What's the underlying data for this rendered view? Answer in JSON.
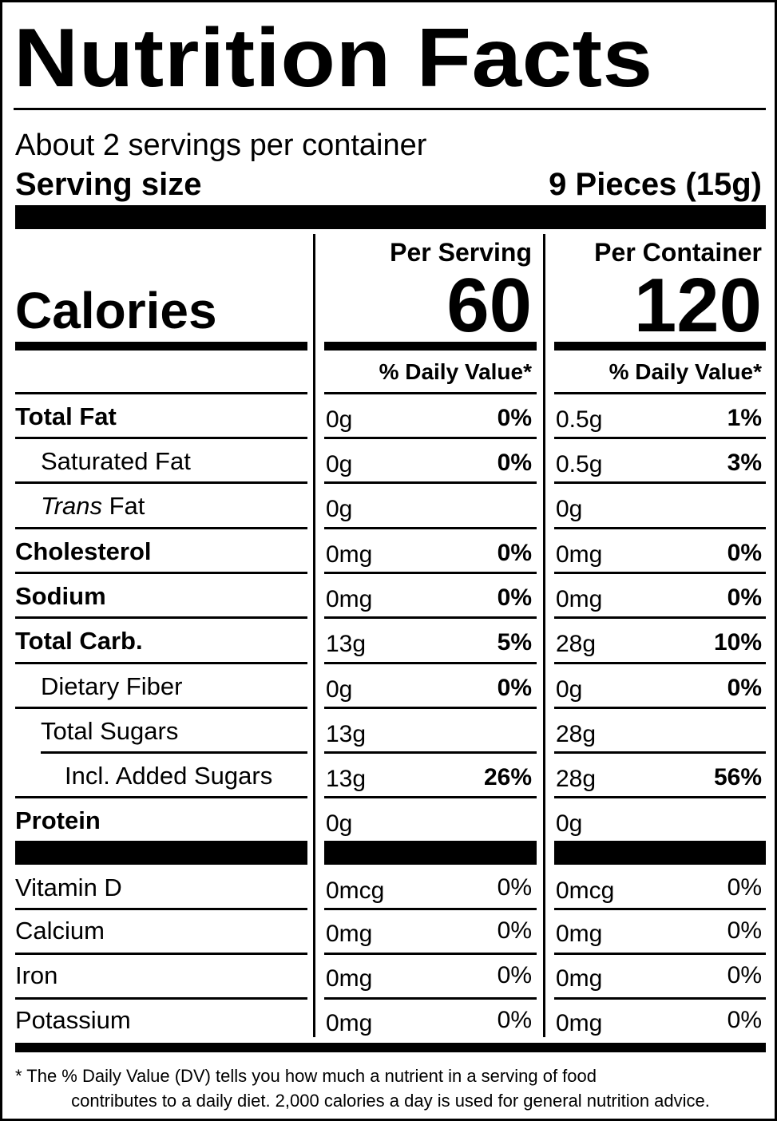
{
  "title": "Nutrition Facts",
  "servings_per_container": "About 2 servings per container",
  "serving_size_label": "Serving size",
  "serving_size_value": "9 Pieces (15g)",
  "calories_label": "Calories",
  "columns": [
    {
      "heading": "Per Serving",
      "calories": "60",
      "dv_heading": "% Daily Value*"
    },
    {
      "heading": "Per Container",
      "calories": "120",
      "dv_heading": "% Daily Value*"
    }
  ],
  "nutrients": [
    {
      "label": "Total Fat",
      "serving_amount": "0g",
      "serving_dv": "0%",
      "container_amount": "0.5g",
      "container_dv": "1%"
    },
    {
      "label": "Saturated Fat",
      "serving_amount": "0g",
      "serving_dv": "0%",
      "container_amount": "0.5g",
      "container_dv": "3%"
    },
    {
      "label_italic": "Trans",
      "label": "Fat",
      "serving_amount": "0g",
      "serving_dv": "",
      "container_amount": "0g",
      "container_dv": ""
    },
    {
      "label": "Cholesterol",
      "serving_amount": "0mg",
      "serving_dv": "0%",
      "container_amount": "0mg",
      "container_dv": "0%"
    },
    {
      "label": "Sodium",
      "serving_amount": "0mg",
      "serving_dv": "0%",
      "container_amount": "0mg",
      "container_dv": "0%"
    },
    {
      "label": "Total Carb.",
      "serving_amount": "13g",
      "serving_dv": "5%",
      "container_amount": "28g",
      "container_dv": "10%"
    },
    {
      "label": "Dietary Fiber",
      "serving_amount": "0g",
      "serving_dv": "0%",
      "container_amount": "0g",
      "container_dv": "0%"
    },
    {
      "label": "Total Sugars",
      "serving_amount": "13g",
      "serving_dv": "",
      "container_amount": "28g",
      "container_dv": ""
    },
    {
      "label": "Incl. Added Sugars",
      "serving_amount": "13g",
      "serving_dv": "26%",
      "container_amount": "28g",
      "container_dv": "56%"
    },
    {
      "label": "Protein",
      "serving_amount": "0g",
      "serving_dv": "",
      "container_amount": "0g",
      "container_dv": ""
    }
  ],
  "vitamins": [
    {
      "label": "Vitamin D",
      "serving_amount": "0mcg",
      "serving_dv": "0%",
      "container_amount": "0mcg",
      "container_dv": "0%"
    },
    {
      "label": "Calcium",
      "serving_amount": "0mg",
      "serving_dv": "0%",
      "container_amount": "0mg",
      "container_dv": "0%"
    },
    {
      "label": "Iron",
      "serving_amount": "0mg",
      "serving_dv": "0%",
      "container_amount": "0mg",
      "container_dv": "0%"
    },
    {
      "label": "Potassium",
      "serving_amount": "0mg",
      "serving_dv": "0%",
      "container_amount": "0mg",
      "container_dv": "0%"
    }
  ],
  "footnote_line1": "* The % Daily Value (DV) tells you how much a nutrient in a serving of food",
  "footnote_line2": "contributes to a daily diet. 2,000 calories a day is used for general nutrition advice."
}
